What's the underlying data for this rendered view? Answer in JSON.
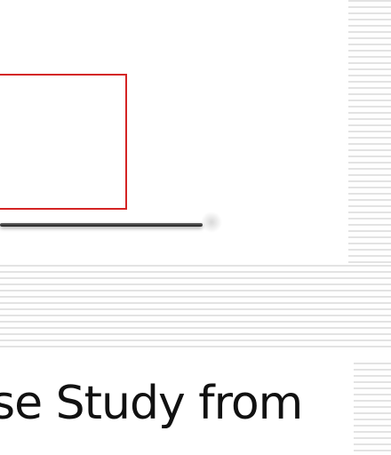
{
  "slide": {
    "caption": "se Study from"
  },
  "colors": {
    "frame_border": "#d42424",
    "stripe": "#e3e3e3",
    "text": "#111111"
  }
}
